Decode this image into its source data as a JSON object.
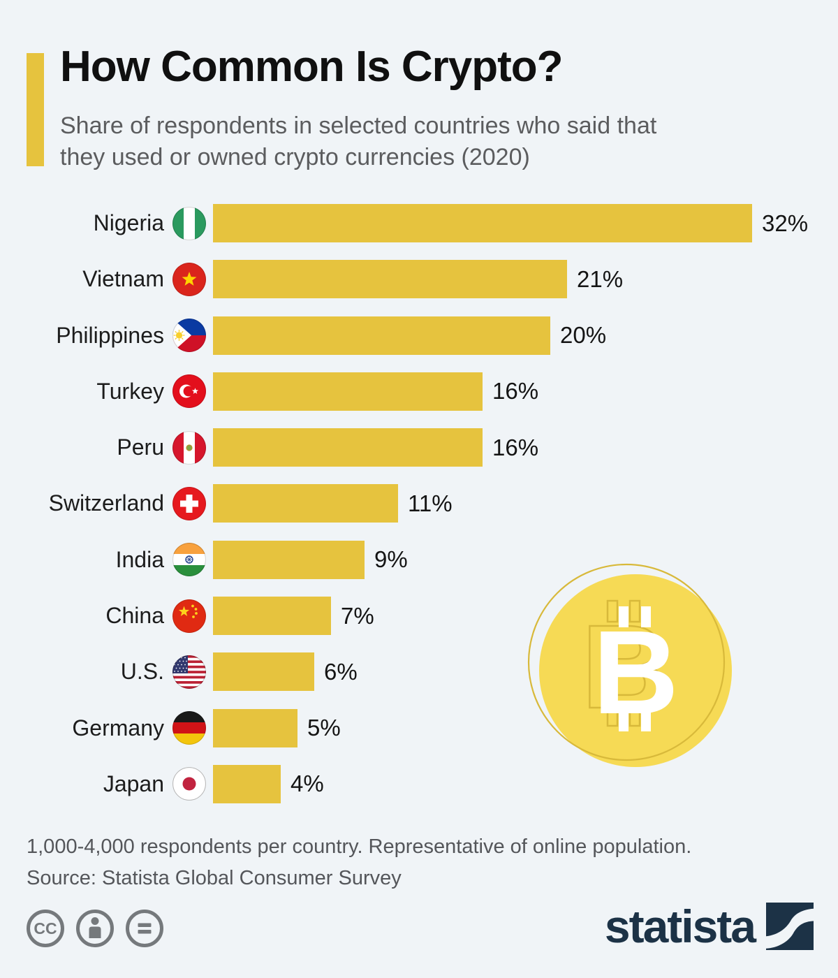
{
  "colors": {
    "background": "#f0f4f7",
    "bar_yellow": "#e6c33e",
    "coin_fill": "#f6da55",
    "coin_outline": "#d8b93a",
    "brand_navy": "#1c3246",
    "license_gray": "#75797c"
  },
  "header": {
    "title": "How Common Is Crypto?",
    "subtitle": "Share of respondents in selected countries who said that they used or owned crypto currencies (2020)"
  },
  "chart_data": {
    "type": "bar",
    "orientation": "horizontal",
    "title": "How Common Is Crypto?",
    "unit": "%",
    "xlim": [
      0,
      32
    ],
    "grid": false,
    "legend": false,
    "bar_color": "#e6c33e",
    "categories": [
      "Nigeria",
      "Vietnam",
      "Philippines",
      "Turkey",
      "Peru",
      "Switzerland",
      "India",
      "China",
      "U.S.",
      "Germany",
      "Japan"
    ],
    "values": [
      32,
      21,
      20,
      16,
      16,
      11,
      9,
      7,
      6,
      5,
      4
    ],
    "rows": [
      {
        "country": "Nigeria",
        "value": 32,
        "value_label": "32%",
        "flag_icon": "flag-nigeria-icon"
      },
      {
        "country": "Vietnam",
        "value": 21,
        "value_label": "21%",
        "flag_icon": "flag-vietnam-icon"
      },
      {
        "country": "Philippines",
        "value": 20,
        "value_label": "20%",
        "flag_icon": "flag-philippines-icon"
      },
      {
        "country": "Turkey",
        "value": 16,
        "value_label": "16%",
        "flag_icon": "flag-turkey-icon"
      },
      {
        "country": "Peru",
        "value": 16,
        "value_label": "16%",
        "flag_icon": "flag-peru-icon"
      },
      {
        "country": "Switzerland",
        "value": 11,
        "value_label": "11%",
        "flag_icon": "flag-switzerland-icon"
      },
      {
        "country": "India",
        "value": 9,
        "value_label": "9%",
        "flag_icon": "flag-india-icon"
      },
      {
        "country": "China",
        "value": 7,
        "value_label": "7%",
        "flag_icon": "flag-china-icon"
      },
      {
        "country": "U.S.",
        "value": 6,
        "value_label": "6%",
        "flag_icon": "flag-us-icon"
      },
      {
        "country": "Germany",
        "value": 5,
        "value_label": "5%",
        "flag_icon": "flag-germany-icon"
      },
      {
        "country": "Japan",
        "value": 4,
        "value_label": "4%",
        "flag_icon": "flag-japan-icon"
      }
    ]
  },
  "decoration": {
    "bitcoin_icon": "bitcoin-coin-icon",
    "bitcoin_symbol": "B"
  },
  "footnote": {
    "line1": "1,000-4,000 respondents per country. Representative of online population.",
    "line2": "Source: Statista Global Consumer Survey"
  },
  "footer": {
    "license_icons": [
      "cc-icon",
      "attribution-person-icon",
      "nd-equals-icon"
    ],
    "cc_label": "CC",
    "brand": "statista"
  }
}
